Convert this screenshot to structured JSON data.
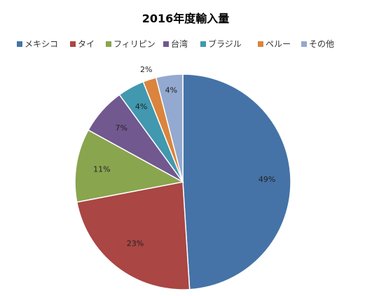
{
  "chart_data": {
    "type": "pie",
    "title": "2016年度輸入量",
    "legend_position": "top",
    "categories": [
      "メキシコ",
      "タイ",
      "フィリピン",
      "台湾",
      "ブラジル",
      "ペルー",
      "その他"
    ],
    "values": [
      49,
      23,
      11,
      7,
      4,
      2,
      4
    ],
    "data_labels": [
      "49%",
      "23%",
      "11%",
      "7%",
      "4%",
      "2%",
      "4%"
    ],
    "colors": [
      "#4573A7",
      "#AA4643",
      "#89A54E",
      "#71588F",
      "#4198AF",
      "#DB843D",
      "#93A9CF"
    ]
  }
}
